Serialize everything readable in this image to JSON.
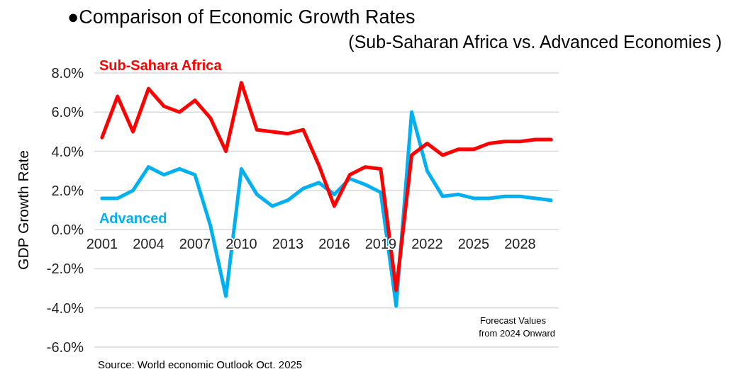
{
  "chart_data": {
    "type": "line",
    "title": "●Comparison of Economic Growth Rates",
    "subtitle": "(Sub-Saharan Africa vs. Advanced Economies )",
    "ylabel": "GDP Growth Rate",
    "x": [
      2001,
      2002,
      2003,
      2004,
      2005,
      2006,
      2007,
      2008,
      2009,
      2010,
      2011,
      2012,
      2013,
      2014,
      2015,
      2016,
      2017,
      2018,
      2019,
      2020,
      2021,
      2022,
      2023,
      2024,
      2025,
      2026,
      2027,
      2028,
      2029,
      2030
    ],
    "series": [
      {
        "name": "Sub-Sahara Africa",
        "color": "#ff0000",
        "values": [
          4.7,
          6.8,
          5.0,
          7.2,
          6.3,
          6.0,
          6.6,
          5.7,
          4.0,
          7.5,
          5.1,
          5.0,
          4.9,
          5.1,
          3.3,
          1.2,
          2.8,
          3.2,
          3.1,
          -3.1,
          3.8,
          4.4,
          3.8,
          4.1,
          4.1,
          4.4,
          4.5,
          4.5,
          4.6,
          4.6
        ]
      },
      {
        "name": "Advanced",
        "color": "#00b0f0",
        "values": [
          1.6,
          1.6,
          2.0,
          3.2,
          2.8,
          3.1,
          2.8,
          0.2,
          -3.4,
          3.1,
          1.8,
          1.2,
          1.5,
          2.1,
          2.4,
          1.8,
          2.6,
          2.3,
          1.9,
          -3.9,
          6.0,
          3.0,
          1.7,
          1.8,
          1.6,
          1.6,
          1.7,
          1.7,
          1.6,
          1.5
        ]
      }
    ],
    "xlim": [
      2000.5,
      2030.5
    ],
    "xticks": [
      2001,
      2004,
      2007,
      2010,
      2013,
      2016,
      2019,
      2022,
      2025,
      2028
    ],
    "ylim": [
      -6,
      8
    ],
    "yticks": [
      {
        "value": -6,
        "label": "-6.0%"
      },
      {
        "value": -4,
        "label": "-4.0%"
      },
      {
        "value": -2,
        "label": "-2.0%"
      },
      {
        "value": 0,
        "label": "0.0%"
      },
      {
        "value": 2,
        "label": "2.0%"
      },
      {
        "value": 4,
        "label": "4.0%"
      },
      {
        "value": 6,
        "label": "6.0%"
      },
      {
        "value": 8,
        "label": "8.0%"
      }
    ],
    "grid": "y",
    "marker": "none",
    "line_style": "solid",
    "annotations": [
      {
        "text": "Forecast Values\nfrom 2024 Onward"
      },
      {
        "text": "Source: World economic Outlook Oct. 2025"
      }
    ]
  }
}
